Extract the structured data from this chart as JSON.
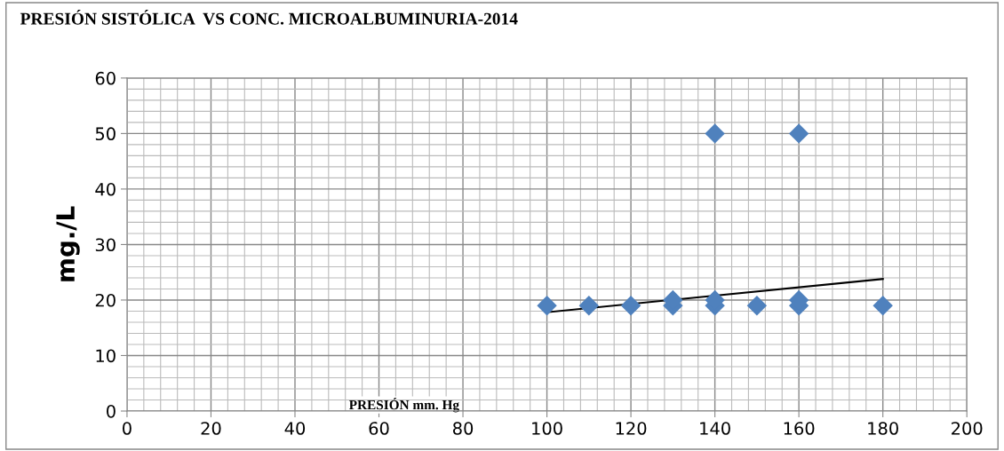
{
  "chart_data": {
    "type": "scatter",
    "title": "PRESIÓN SISTÓLICA  VS CONC. MICROALBUMINURIA-2014",
    "xlabel": "PRESIÓN mm. Hg",
    "ylabel": "mg./L",
    "series": [
      {
        "color": "#4f81bd",
        "marker": "diamond",
        "x": [
          100,
          110,
          120,
          130,
          130,
          140,
          140,
          140,
          150,
          160,
          160,
          160,
          180
        ],
        "values": [
          19,
          19,
          19,
          19,
          20,
          19,
          20,
          50,
          19,
          19,
          20,
          50,
          19
        ]
      },
      {
        "type": "line",
        "color": "#000000",
        "marker": "none",
        "x": [
          100,
          180
        ],
        "values": [
          17.8,
          23.8
        ]
      }
    ],
    "xlim": [
      0,
      200
    ],
    "xticks": [
      0,
      20,
      40,
      60,
      80,
      100,
      120,
      140,
      160,
      180,
      200
    ],
    "ylim": [
      0,
      60
    ],
    "yticks": [
      0,
      10,
      20,
      30,
      40,
      50,
      60
    ],
    "grid": true
  }
}
